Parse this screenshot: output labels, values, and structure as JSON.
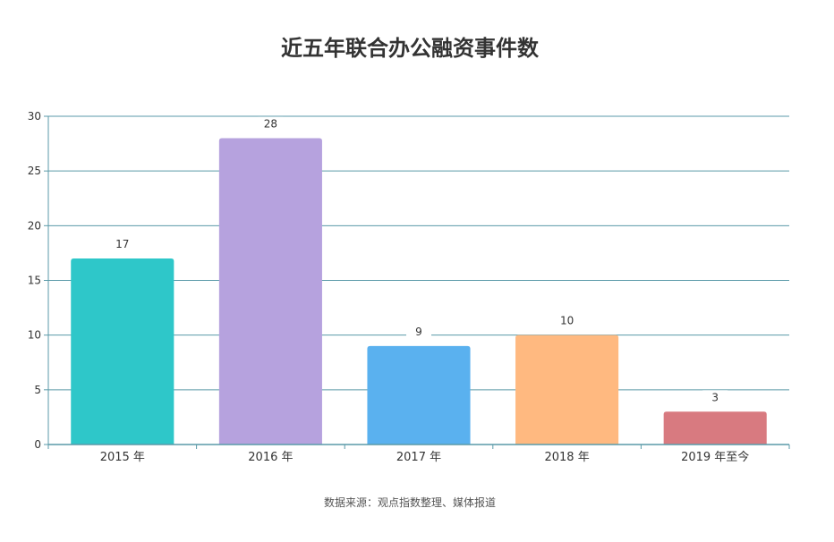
{
  "chart_data": {
    "type": "bar",
    "title": "近五年联合办公融资事件数",
    "categories": [
      "2015 年",
      "2016 年",
      "2017 年",
      "2018 年",
      "2019 年至今"
    ],
    "values": [
      17,
      28,
      9,
      10,
      3
    ],
    "colors": [
      "#2ec7c9",
      "#b6a2de",
      "#5ab1ef",
      "#ffb980",
      "#d87a80"
    ],
    "ylim": [
      0,
      30
    ],
    "yticks": [
      0,
      5,
      10,
      15,
      20,
      25,
      30
    ],
    "grid": true,
    "gridColor": "#5a9aa8",
    "xlabel": "",
    "ylabel": ""
  },
  "source": "数据来源：观点指数整理、媒体报道"
}
